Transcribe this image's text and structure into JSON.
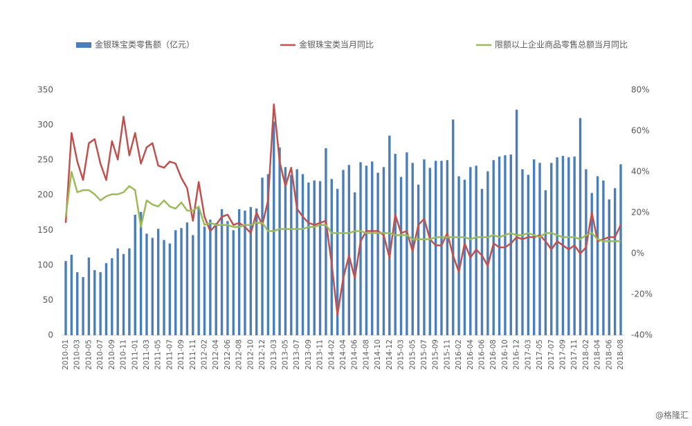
{
  "chart_data": {
    "type": "bar_line",
    "categories": [
      "2010-01",
      null,
      "2010-03",
      null,
      "2010-05",
      null,
      "2010-07",
      null,
      "2010-09",
      null,
      "2010-11",
      null,
      "2011-01",
      null,
      "2011-03",
      null,
      "2011-05",
      null,
      "2011-07",
      null,
      "2011-09",
      null,
      "2011-11",
      null,
      "2012-02",
      null,
      "2012-04",
      null,
      "2012-06",
      null,
      "2012-08",
      null,
      "2012-10",
      null,
      "2012-12",
      null,
      "2013-03",
      null,
      "2013-05",
      null,
      "2013-07",
      null,
      "2013-09",
      null,
      "2013-11",
      null,
      "2014-02",
      null,
      "2014-04",
      null,
      "2014-06",
      null,
      "2014-08",
      null,
      "2014-10",
      null,
      "2014-12",
      null,
      "2015-03",
      null,
      "2015-05",
      null,
      "2015-07",
      null,
      "2015-09",
      null,
      "2015-11",
      null,
      "2016-02",
      null,
      "2016-04",
      null,
      "2016-06",
      null,
      "2016-08",
      null,
      "2016-10",
      null,
      "2016-12",
      null,
      "2017-03",
      null,
      "2017-05",
      null,
      "2017-07",
      null,
      "2017-09",
      null,
      "2017-11",
      null,
      "2018-02",
      null,
      "2018-04",
      null,
      "2018-06",
      null,
      "2018-08"
    ],
    "series": [
      {
        "name": "金银珠宝类零售额（亿元）",
        "type": "bar",
        "color": "#4a7ebb",
        "axis": "y",
        "values": [
          106,
          115,
          90,
          83,
          111,
          93,
          90,
          103,
          110,
          124,
          116,
          124,
          172,
          176,
          145,
          139,
          152,
          136,
          131,
          150,
          153,
          161,
          143,
          182,
          155,
          165,
          160,
          180,
          163,
          150,
          180,
          178,
          183,
          181,
          225,
          230,
          305,
          268,
          240,
          229,
          237,
          230,
          218,
          221,
          220,
          267,
          223,
          209,
          236,
          243,
          204,
          247,
          242,
          248,
          232,
          240,
          285,
          259,
          226,
          261,
          246,
          215,
          251,
          239,
          249,
          249,
          250,
          308,
          227,
          222,
          240,
          242,
          209,
          234,
          250,
          255,
          257,
          258,
          322,
          237,
          229,
          251,
          246,
          207,
          246,
          254,
          256,
          254,
          255,
          310,
          237,
          203,
          227,
          221,
          194,
          210,
          244
        ]
      },
      {
        "name": "金银珠宝类当月同比",
        "type": "line",
        "color": "#c0504d",
        "axis": "y2",
        "values": [
          15,
          59,
          45,
          36,
          54,
          56,
          44,
          36,
          55,
          46,
          67,
          48,
          59,
          44,
          52,
          54,
          43,
          42,
          45,
          44,
          37,
          32,
          16,
          35,
          18,
          11,
          14,
          18,
          19,
          14,
          15,
          13,
          10,
          20,
          14,
          26,
          73,
          45,
          33,
          42,
          22,
          18,
          15,
          14,
          15,
          16,
          -5,
          -30,
          -12,
          -1,
          -12,
          6,
          11,
          11,
          11,
          9,
          -2,
          19,
          10,
          11,
          1,
          14,
          17,
          7,
          4,
          4,
          10,
          -1,
          -9,
          5,
          -2,
          2,
          -1,
          -6,
          5,
          3,
          3,
          5,
          8,
          7,
          8,
          8,
          9,
          6,
          2,
          6,
          4,
          2,
          4,
          0,
          3,
          20,
          6,
          7,
          8,
          8,
          14
        ]
      },
      {
        "name": "限额以上企业商品零售总额当月同比",
        "type": "line",
        "color": "#9bbb59",
        "axis": "y2",
        "values": [
          18,
          40,
          30,
          31,
          31,
          29,
          26,
          28,
          29,
          29,
          30,
          33,
          31,
          13,
          26,
          24,
          23,
          26,
          23,
          22,
          25,
          21,
          21,
          23,
          14,
          15,
          14,
          14,
          14,
          13,
          13,
          14,
          14,
          15,
          15,
          11,
          11,
          12,
          12,
          12,
          12,
          12,
          13,
          13,
          14,
          14,
          10,
          10,
          10,
          10,
          11,
          11,
          10,
          10,
          10,
          10,
          10,
          9,
          9,
          9,
          7,
          7,
          7,
          7,
          8,
          8,
          8,
          8,
          8,
          8,
          7,
          8,
          8,
          8,
          9,
          8,
          9,
          10,
          9,
          9,
          10,
          9,
          8,
          10,
          10,
          9,
          8,
          8,
          8,
          7,
          9,
          10,
          7,
          6,
          6,
          6,
          6
        ]
      }
    ],
    "ylim": [
      0,
      350
    ],
    "yticks": [
      0,
      50,
      100,
      150,
      200,
      250,
      300,
      350
    ],
    "y2lim": [
      -40,
      80
    ],
    "y2ticks": [
      {
        "value": -40,
        "label": "-40%"
      },
      {
        "value": -20,
        "label": "-20%"
      },
      {
        "value": 0,
        "label": "0%"
      },
      {
        "value": 20,
        "label": "20%"
      },
      {
        "value": 40,
        "label": "40%"
      },
      {
        "value": 60,
        "label": "60%"
      },
      {
        "value": 80,
        "label": "80%"
      }
    ],
    "legend": "top"
  },
  "watermark": "@格隆汇"
}
